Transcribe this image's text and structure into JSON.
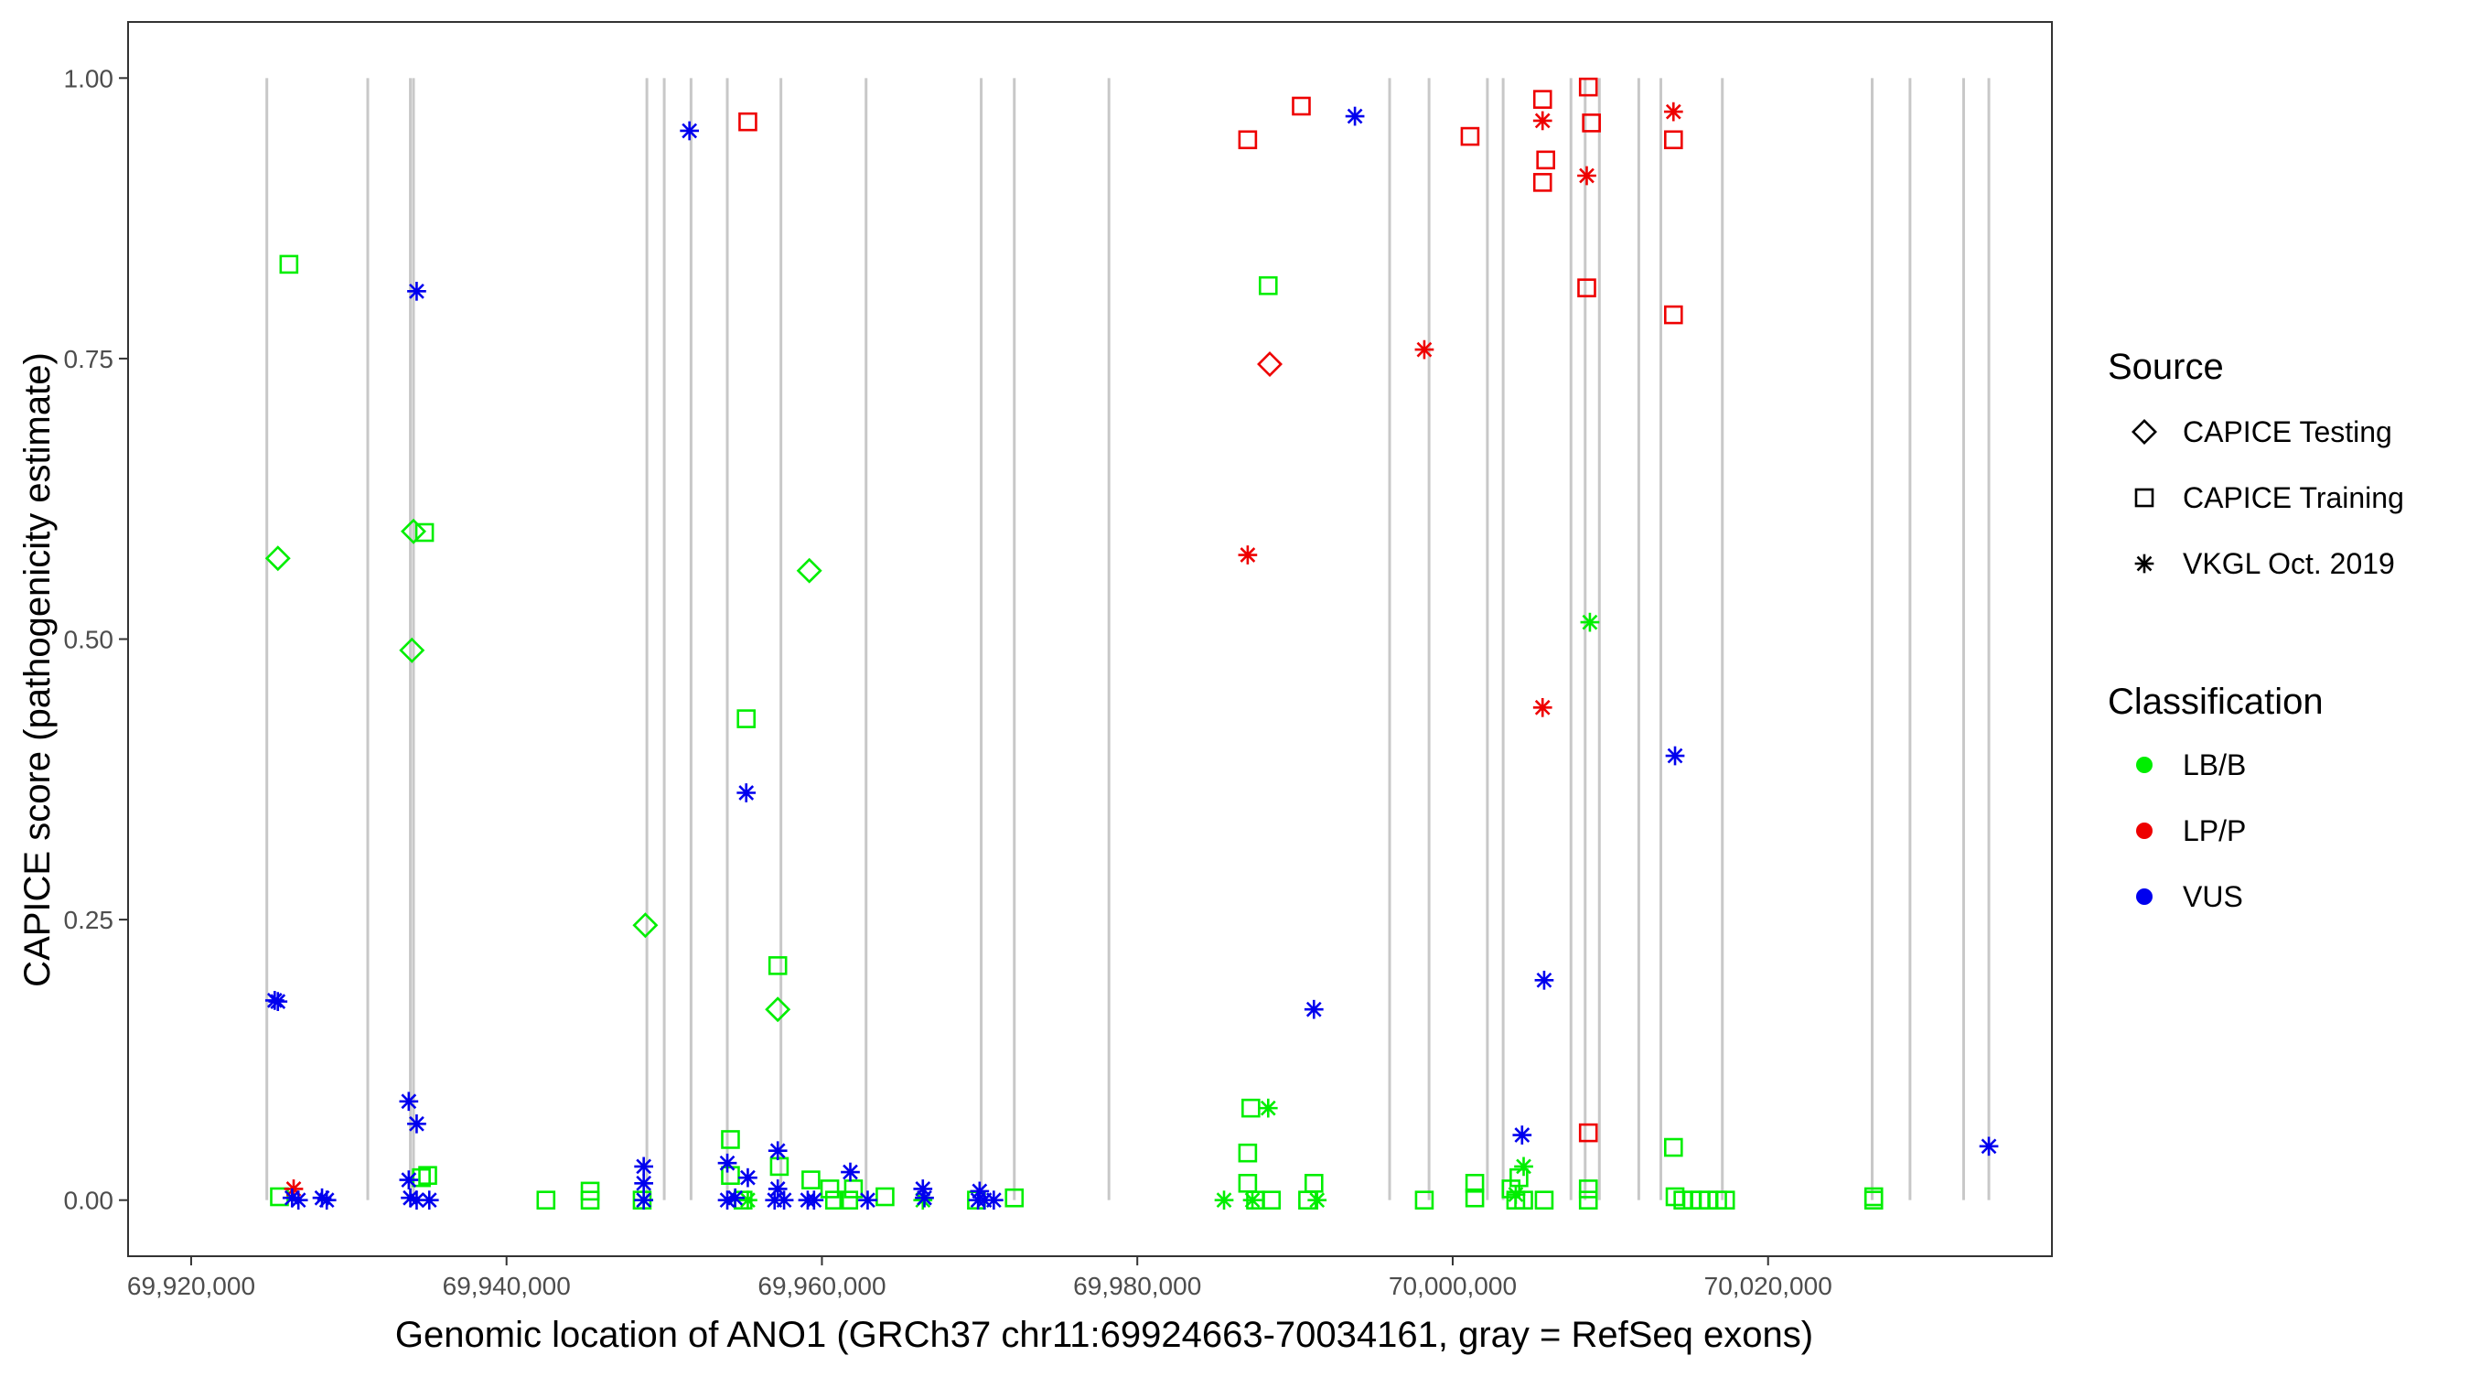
{
  "chart_data": {
    "type": "scatter",
    "xlabel": "Genomic location of ANO1 (GRCh37 chr11:69924663-70034161, gray = RefSeq exons)",
    "ylabel": "CAPICE score (pathogenicity estimate)",
    "xlim": [
      69916000,
      70038000
    ],
    "ylim": [
      -0.05,
      1.05
    ],
    "x_ticks": [
      69920000,
      69940000,
      69960000,
      69980000,
      70000000,
      70020000
    ],
    "x_tick_labels": [
      "69,920,000",
      "69,940,000",
      "69,960,000",
      "69,980,000",
      "70,000,000",
      "70,020,000"
    ],
    "y_ticks": [
      0,
      0.25,
      0.5,
      0.75,
      1.0
    ],
    "y_tick_labels": [
      "0.00",
      "0.25",
      "0.50",
      "0.75",
      "1.00"
    ],
    "grid": false,
    "exons": [
      69924800,
      69931200,
      69933900,
      69934100,
      69948900,
      69950000,
      69951700,
      69954000,
      69957400,
      69962800,
      69970100,
      69972200,
      69978200,
      69996000,
      69998500,
      70002200,
      70003200,
      70007500,
      70008400,
      70009300,
      70011800,
      70013200,
      70017100,
      70026600,
      70029000,
      70032400,
      70034000
    ],
    "colors": {
      "LB/B": "#00ee00",
      "LP/P": "#ee0000",
      "VUS": "#0000ee",
      "exon": "#c8c8c8",
      "panel_border": "#333333"
    },
    "legend": {
      "position": "right",
      "source_title": "Source",
      "source_items": [
        {
          "label": "CAPICE Testing",
          "shape": "diamond"
        },
        {
          "label": "CAPICE Training",
          "shape": "square"
        },
        {
          "label": "VKGL Oct. 2019",
          "shape": "asterisk"
        }
      ],
      "class_title": "Classification",
      "class_items": [
        {
          "label": "LB/B",
          "color": "#00ee00"
        },
        {
          "label": "LP/P",
          "color": "#ee0000"
        },
        {
          "label": "VUS",
          "color": "#0000ee"
        }
      ]
    },
    "series": [
      {
        "source": "CAPICE Testing",
        "classification": "LB/B",
        "shape": "diamond",
        "points": [
          [
            69925500,
            0.572
          ],
          [
            69934100,
            0.596
          ],
          [
            69934000,
            0.49
          ],
          [
            69948800,
            0.245
          ],
          [
            69959200,
            0.561
          ],
          [
            69957200,
            0.17
          ]
        ]
      },
      {
        "source": "CAPICE Testing",
        "classification": "LP/P",
        "shape": "diamond",
        "points": [
          [
            69988400,
            0.745
          ]
        ]
      },
      {
        "source": "CAPICE Training",
        "classification": "LB/B",
        "shape": "square",
        "points": [
          [
            69926200,
            0.834
          ],
          [
            69934800,
            0.595
          ],
          [
            69955200,
            0.429
          ],
          [
            69957200,
            0.209
          ],
          [
            69954200,
            0.054
          ],
          [
            69988300,
            0.815
          ],
          [
            69987200,
            0.082
          ],
          [
            69987000,
            0.042
          ],
          [
            70014000,
            0.047
          ],
          [
            69925600,
            0.003
          ],
          [
            69934600,
            0.02
          ],
          [
            69935000,
            0.022
          ],
          [
            69942500,
            0.0
          ],
          [
            69945300,
            0.0
          ],
          [
            69945300,
            0.008
          ],
          [
            69948600,
            0.0
          ],
          [
            69954200,
            0.022
          ],
          [
            69955000,
            0.0
          ],
          [
            69957300,
            0.03
          ],
          [
            69959300,
            0.018
          ],
          [
            69960500,
            0.01
          ],
          [
            69960800,
            0.0
          ],
          [
            69961700,
            0.0
          ],
          [
            69962000,
            0.01
          ],
          [
            69964000,
            0.003
          ],
          [
            69969800,
            0.0
          ],
          [
            69972200,
            0.002
          ],
          [
            69987000,
            0.015
          ],
          [
            69987500,
            0.0
          ],
          [
            69988500,
            0.0
          ],
          [
            69990800,
            0.0
          ],
          [
            69991200,
            0.015
          ],
          [
            69998200,
            0.0
          ],
          [
            70001400,
            0.002
          ],
          [
            70001400,
            0.015
          ],
          [
            70003700,
            0.01
          ],
          [
            70004000,
            0.0
          ],
          [
            70004200,
            0.02
          ],
          [
            70004500,
            0.0
          ],
          [
            70005800,
            0.0
          ],
          [
            70008600,
            0.01
          ],
          [
            70008600,
            0.0
          ],
          [
            70014100,
            0.003
          ],
          [
            70014600,
            0.0
          ],
          [
            70015200,
            0.0
          ],
          [
            70015700,
            0.0
          ],
          [
            70016200,
            0.0
          ],
          [
            70016800,
            0.0
          ],
          [
            70017300,
            0.0
          ],
          [
            70026700,
            0.003
          ],
          [
            70026700,
            0.0
          ]
        ]
      },
      {
        "source": "CAPICE Training",
        "classification": "LP/P",
        "shape": "square",
        "points": [
          [
            69955300,
            0.961
          ],
          [
            69987000,
            0.945
          ],
          [
            69990400,
            0.975
          ],
          [
            70001100,
            0.948
          ],
          [
            70005700,
            0.981
          ],
          [
            70008600,
            0.992
          ],
          [
            70005900,
            0.927
          ],
          [
            70005700,
            0.907
          ],
          [
            70008800,
            0.96
          ],
          [
            70014000,
            0.945
          ],
          [
            70008500,
            0.813
          ],
          [
            70014000,
            0.789
          ],
          [
            70008600,
            0.06
          ]
        ]
      },
      {
        "source": "VKGL Oct. 2019",
        "classification": "LB/B",
        "shape": "asterisk",
        "points": [
          [
            70008700,
            0.515
          ],
          [
            69988300,
            0.082
          ],
          [
            70004500,
            0.03
          ],
          [
            69985500,
            0.0
          ],
          [
            69987300,
            0.0
          ],
          [
            69991400,
            0.0
          ],
          [
            69966400,
            0.0
          ],
          [
            69955300,
            0.0
          ],
          [
            69948700,
            0.0
          ],
          [
            70004000,
            0.005
          ]
        ]
      },
      {
        "source": "VKGL Oct. 2019",
        "classification": "LP/P",
        "shape": "asterisk",
        "points": [
          [
            70005700,
            0.962
          ],
          [
            70014000,
            0.97
          ],
          [
            70008500,
            0.913
          ],
          [
            69998200,
            0.758
          ],
          [
            69987000,
            0.575
          ],
          [
            70005700,
            0.439
          ],
          [
            69926500,
            0.01
          ]
        ]
      },
      {
        "source": "VKGL Oct. 2019",
        "classification": "VUS",
        "shape": "asterisk",
        "points": [
          [
            69951600,
            0.953
          ],
          [
            69993800,
            0.966
          ],
          [
            69934300,
            0.81
          ],
          [
            69955200,
            0.363
          ],
          [
            70014100,
            0.396
          ],
          [
            70005800,
            0.196
          ],
          [
            69925500,
            0.177
          ],
          [
            69925300,
            0.178
          ],
          [
            69991200,
            0.17
          ],
          [
            69933800,
            0.088
          ],
          [
            69934300,
            0.068
          ],
          [
            70004400,
            0.058
          ],
          [
            70034000,
            0.048
          ],
          [
            69957200,
            0.044
          ],
          [
            69954000,
            0.033
          ],
          [
            69948700,
            0.03
          ],
          [
            69961800,
            0.025
          ],
          [
            69955300,
            0.02
          ],
          [
            69933800,
            0.018
          ],
          [
            69948700,
            0.015
          ],
          [
            69957200,
            0.01
          ],
          [
            69966400,
            0.01
          ],
          [
            69970000,
            0.008
          ],
          [
            69926400,
            0.002
          ],
          [
            69926800,
            0.0
          ],
          [
            69928300,
            0.002
          ],
          [
            69928600,
            0.0
          ],
          [
            69933900,
            0.002
          ],
          [
            69934300,
            0.0
          ],
          [
            69935100,
            0.0
          ],
          [
            69948700,
            0.0
          ],
          [
            69954000,
            0.0
          ],
          [
            69954500,
            0.002
          ],
          [
            69957000,
            0.0
          ],
          [
            69957600,
            0.0
          ],
          [
            69959100,
            0.0
          ],
          [
            69959500,
            0.0
          ],
          [
            69962900,
            0.0
          ],
          [
            69966500,
            0.002
          ],
          [
            69969900,
            0.0
          ],
          [
            69970300,
            0.0
          ],
          [
            69970900,
            0.0
          ]
        ]
      }
    ]
  }
}
